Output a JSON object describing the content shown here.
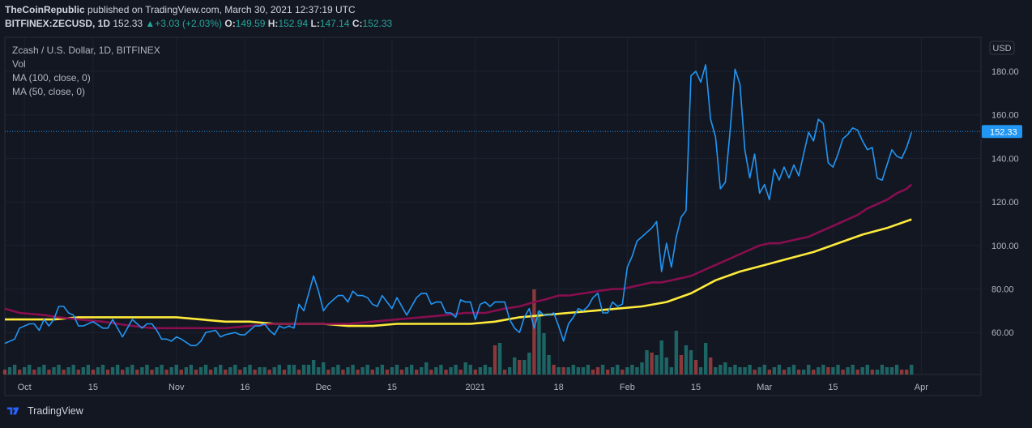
{
  "header": {
    "publisher": "TheCoinRepublic",
    "published_text": "published on TradingView.com, March 30, 2021 12:37:19 UTC",
    "symbol": "BITFINEX:ZECUSD, 1D",
    "last": "152.33",
    "change_arrow": "▲",
    "change": "+3.03 (+2.03%)",
    "open_label": "O:",
    "open": "149.59",
    "high_label": "H:",
    "high": "152.94",
    "low_label": "L:",
    "low": "147.14",
    "close_label": "C:",
    "close": "152.33"
  },
  "legend": {
    "pair": "Zcash / U.S. Dollar, 1D, BITFINEX",
    "vol": "Vol",
    "ma100": "MA (100, close, 0)",
    "ma50": "MA (50, close, 0)"
  },
  "axis": {
    "currency": "USD",
    "y_ticks": [
      "180.00",
      "160.00",
      "140.00",
      "120.00",
      "100.00",
      "80.00",
      "60.00"
    ],
    "y_tick_values": [
      180,
      160,
      140,
      120,
      100,
      80,
      60
    ],
    "x_ticks": [
      "Oct",
      "15",
      "Nov",
      "16",
      "Dec",
      "15",
      "2021",
      "18",
      "Feb",
      "15",
      "Mar",
      "15",
      "Apr"
    ],
    "x_tick_days": [
      4,
      18,
      35,
      49,
      65,
      79,
      96,
      113,
      127,
      141,
      155,
      169,
      187
    ],
    "last_price_label": "152.33"
  },
  "footer": {
    "brand": "TradingView"
  },
  "colors": {
    "background": "#131722",
    "price_line": "#2196f3",
    "ma50": "#880e4f",
    "ma100": "#ffeb3b",
    "vol_up": "#26a69a",
    "vol_down": "#ef5350",
    "grid": "#1e2230"
  },
  "chart_data": {
    "type": "line",
    "title": "Zcash / U.S. Dollar, 1D, BITFINEX",
    "x_unit": "day index (0 = Sep 27, 2020)",
    "ylim": [
      42,
      192
    ],
    "grid": true,
    "series": [
      {
        "name": "ZECUSD",
        "x": [
          0,
          2,
          3,
          5,
          6,
          7,
          8,
          9,
          10,
          11,
          12,
          13,
          14,
          15,
          16,
          18,
          20,
          21,
          22,
          24,
          26,
          28,
          29,
          30,
          31,
          32,
          33,
          34,
          35,
          36,
          38,
          39,
          40,
          41,
          43,
          44,
          45,
          47,
          48,
          49,
          51,
          52,
          53,
          54,
          55,
          56,
          57,
          58,
          59,
          60,
          61,
          63,
          64,
          65,
          66,
          68,
          69,
          70,
          71,
          72,
          73,
          74,
          75,
          76,
          77,
          79,
          80,
          82,
          84,
          85,
          86,
          87,
          88,
          89,
          90,
          91,
          92,
          93,
          94,
          95,
          96,
          97,
          98,
          99,
          100,
          101,
          102,
          103,
          104,
          105,
          106,
          107,
          108,
          109,
          110,
          111,
          112,
          113,
          114,
          115,
          116,
          117,
          118,
          119,
          120,
          121,
          122,
          123,
          124,
          125,
          126,
          127,
          128,
          129,
          130,
          131,
          132,
          133,
          134,
          135,
          136,
          137,
          138,
          139,
          140,
          141,
          142,
          143,
          144,
          145,
          146,
          147,
          148,
          149,
          150,
          151,
          152,
          153,
          154,
          155,
          156,
          157,
          158,
          159,
          160,
          161,
          162,
          163,
          164,
          165,
          166,
          167,
          168,
          169,
          170,
          171,
          172,
          173,
          174,
          175,
          176,
          177,
          178,
          179,
          180,
          181,
          182,
          183,
          184,
          185
        ],
        "values": [
          55,
          57,
          62,
          64,
          64,
          61,
          66,
          63,
          66,
          72,
          72,
          69,
          68,
          63,
          63,
          65,
          62,
          62,
          66,
          58,
          66,
          62,
          64,
          64,
          61,
          57,
          57,
          56,
          58,
          57,
          54,
          54,
          56,
          60,
          61,
          58,
          59,
          60,
          59,
          59,
          63,
          63,
          64,
          61,
          59,
          63,
          62,
          63,
          62,
          73,
          70,
          86,
          79,
          70,
          73,
          77,
          77,
          74,
          79,
          77,
          77,
          76,
          73,
          72,
          77,
          71,
          76,
          68,
          76,
          78,
          78,
          73,
          74,
          74,
          69,
          69,
          67,
          75,
          74,
          74,
          66,
          73,
          74,
          72,
          74,
          74,
          74,
          66,
          62,
          60,
          67,
          71,
          62,
          70,
          68,
          68,
          69,
          63,
          56,
          64,
          67,
          71,
          70,
          72,
          76,
          78,
          69,
          69,
          74,
          72,
          73,
          90,
          95,
          102,
          104,
          106,
          108,
          111,
          88,
          101,
          90,
          104,
          113,
          116,
          178,
          180,
          175,
          183,
          158,
          150,
          126,
          129,
          153,
          181,
          174,
          144,
          131,
          142,
          124,
          128,
          121,
          135,
          130,
          136,
          131,
          137,
          132,
          142,
          152,
          148,
          158,
          156,
          138,
          136,
          142,
          149,
          151,
          154,
          153,
          148,
          144,
          145,
          131,
          130,
          137,
          144,
          141,
          140,
          145,
          152
        ],
        "color": "#2196f3"
      },
      {
        "name": "MA (50, close, 0)",
        "x": [
          0,
          3,
          8,
          11,
          15,
          20,
          26,
          30,
          35,
          40,
          45,
          50,
          55,
          60,
          65,
          70,
          75,
          80,
          85,
          90,
          94,
          96,
          98,
          100,
          102,
          105,
          108,
          110,
          113,
          115,
          118,
          121,
          124,
          126,
          128,
          130,
          132,
          134,
          136,
          138,
          140,
          142,
          144,
          146,
          148,
          150,
          152,
          154,
          156,
          158,
          160,
          162,
          164,
          166,
          168,
          170,
          172,
          174,
          176,
          178,
          180,
          182,
          184,
          185
        ],
        "values": [
          71,
          69,
          68,
          67,
          66,
          65,
          63,
          62,
          62,
          62,
          62,
          63,
          64,
          64,
          64,
          64,
          65,
          66,
          67,
          68,
          69,
          69,
          69,
          70,
          71,
          72,
          74,
          75,
          77,
          77,
          78,
          79,
          80,
          80,
          81,
          82,
          83,
          83,
          84,
          85,
          86,
          88,
          90,
          92,
          94,
          96,
          98,
          100,
          101,
          101,
          102,
          103,
          104,
          106,
          108,
          110,
          112,
          114,
          117,
          119,
          121,
          124,
          126,
          128
        ],
        "color": "#880e4f"
      },
      {
        "name": "MA (100, close, 0)",
        "x": [
          0,
          5,
          10,
          15,
          20,
          25,
          30,
          35,
          40,
          45,
          50,
          55,
          60,
          65,
          70,
          75,
          80,
          85,
          90,
          95,
          100,
          105,
          110,
          115,
          120,
          125,
          130,
          135,
          140,
          145,
          150,
          155,
          160,
          165,
          170,
          175,
          180,
          185
        ],
        "values": [
          66,
          66,
          66,
          67,
          67,
          67,
          67,
          67,
          66,
          65,
          65,
          64,
          64,
          64,
          63,
          63,
          64,
          64,
          64,
          64,
          65,
          67,
          68,
          69,
          70,
          71,
          72,
          74,
          78,
          84,
          88,
          91,
          94,
          97,
          101,
          105,
          108,
          112
        ],
        "color": "#ffeb3b"
      }
    ],
    "volume": {
      "name": "Vol",
      "x": [
        53,
        58,
        61,
        63,
        65,
        68,
        86,
        94,
        99,
        100,
        101,
        104,
        105,
        106,
        107,
        108,
        109,
        110,
        111,
        112,
        113,
        114,
        117,
        121,
        129,
        130,
        131,
        132,
        133,
        134,
        135,
        137,
        138,
        139,
        140,
        141,
        143,
        144,
        147,
        150,
        157,
        163,
        168,
        178,
        180,
        184
      ],
      "values": [
        3,
        4,
        4,
        6,
        5,
        4,
        5,
        5,
        3,
        12,
        13,
        7,
        6,
        6,
        9,
        35,
        26,
        17,
        8,
        4,
        3,
        3,
        3,
        3,
        3,
        5,
        10,
        9,
        8,
        14,
        7,
        18,
        8,
        12,
        10,
        6,
        13,
        7,
        5,
        3,
        3,
        2,
        3,
        2,
        3,
        2
      ],
      "up": [
        true,
        true,
        true,
        true,
        true,
        true,
        true,
        true,
        true,
        false,
        true,
        true,
        false,
        true,
        true,
        false,
        true,
        true,
        true,
        false,
        true,
        false,
        true,
        false,
        true,
        true,
        true,
        false,
        true,
        true,
        true,
        true,
        false,
        true,
        true,
        false,
        true,
        false,
        true,
        true,
        true,
        true,
        false,
        true,
        true,
        false
      ]
    }
  }
}
